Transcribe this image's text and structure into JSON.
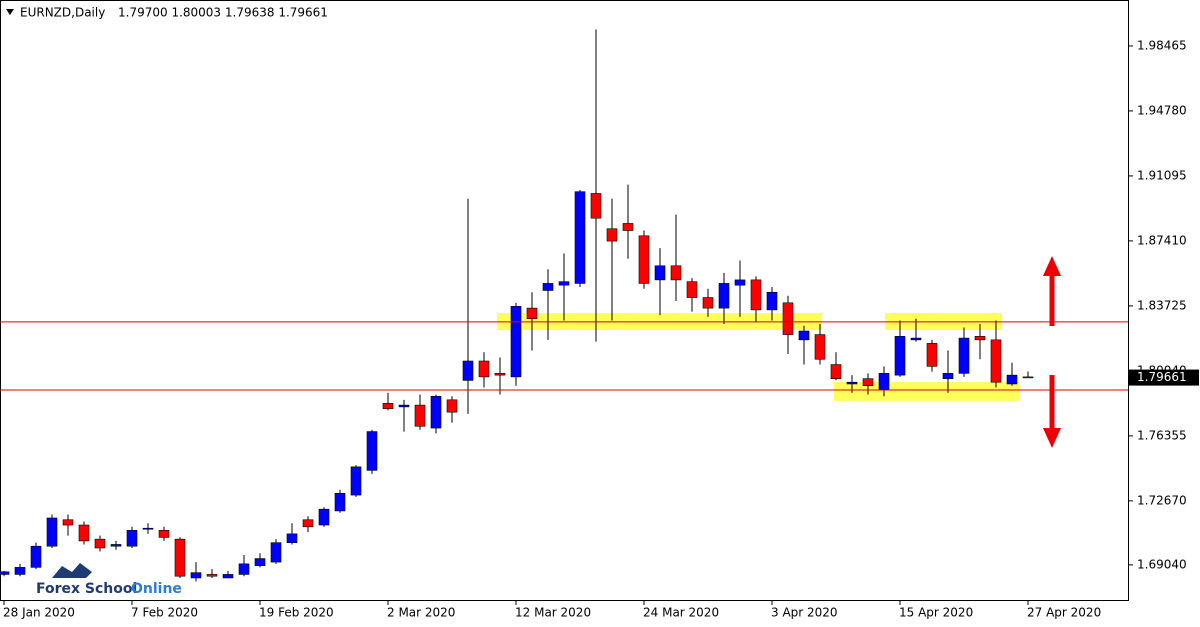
{
  "chart_data": {
    "type": "candlestick",
    "title": "EURNZD,Daily",
    "ohlc_text": "1.79700 1.80003 1.79638 1.79661",
    "price_label": "1.79661",
    "logo": {
      "part1": "Forex School",
      "part2": "Online"
    },
    "up_color": "#0000ff",
    "down_color": "#ff0000",
    "categories": [
      "28 Jan 2020",
      null,
      null,
      null,
      null,
      null,
      null,
      null,
      "7 Feb 2020",
      null,
      null,
      null,
      null,
      null,
      null,
      null,
      "19 Feb 2020",
      null,
      null,
      null,
      null,
      null,
      null,
      null,
      "2 Mar 2020",
      null,
      null,
      null,
      null,
      null,
      null,
      null,
      "12 Mar 2020",
      null,
      null,
      null,
      null,
      null,
      null,
      null,
      "24 Mar 2020",
      null,
      null,
      null,
      null,
      null,
      null,
      null,
      "3 Apr 2020",
      null,
      null,
      null,
      null,
      null,
      null,
      null,
      "15 Apr 2020",
      null,
      null,
      null,
      null,
      null,
      null,
      null,
      "27 Apr 2020"
    ],
    "open": [
      1.685,
      1.685,
      1.689,
      1.701,
      1.716,
      1.713,
      1.705,
      1.701,
      1.701,
      1.711,
      1.71,
      1.705,
      1.683,
      1.685,
      1.683,
      1.685,
      1.69,
      1.692,
      1.703,
      1.716,
      1.713,
      1.721,
      1.73,
      1.744,
      1.782,
      1.78,
      1.781,
      1.768,
      1.784,
      1.795,
      1.806,
      1.799,
      1.797,
      1.836,
      1.846,
      1.849,
      1.85,
      1.901,
      1.881,
      1.884,
      1.877,
      1.852,
      1.86,
      1.851,
      1.842,
      1.836,
      1.849,
      1.852,
      1.835,
      1.839,
      1.818,
      1.821,
      1.804,
      1.793,
      1.796,
      1.79,
      1.798,
      1.818,
      1.816,
      1.796,
      1.799,
      1.82,
      1.818,
      1.793,
      1.797
    ],
    "high": [
      1.687,
      1.691,
      1.703,
      1.719,
      1.719,
      1.715,
      1.707,
      1.704,
      1.712,
      1.714,
      1.712,
      1.706,
      1.692,
      1.688,
      1.687,
      1.696,
      1.697,
      1.705,
      1.714,
      1.718,
      1.723,
      1.733,
      1.747,
      1.767,
      1.788,
      1.784,
      1.787,
      1.787,
      1.786,
      1.898,
      1.811,
      1.808,
      1.839,
      1.845,
      1.858,
      1.867,
      1.903,
      1.994,
      1.898,
      1.906,
      1.88,
      1.87,
      1.889,
      1.853,
      1.847,
      1.856,
      1.863,
      1.854,
      1.848,
      1.843,
      1.826,
      1.827,
      1.811,
      1.798,
      1.799,
      1.803,
      1.829,
      1.83,
      1.818,
      1.812,
      1.825,
      1.827,
      1.829,
      1.805,
      1.80003
    ],
    "low": [
      1.684,
      1.684,
      1.688,
      1.7,
      1.707,
      1.702,
      1.698,
      1.699,
      1.7,
      1.708,
      1.704,
      1.683,
      1.681,
      1.683,
      1.683,
      1.684,
      1.689,
      1.691,
      1.702,
      1.709,
      1.712,
      1.72,
      1.729,
      1.742,
      1.778,
      1.766,
      1.767,
      1.765,
      1.771,
      1.776,
      1.791,
      1.787,
      1.792,
      1.812,
      1.818,
      1.829,
      1.848,
      1.817,
      1.829,
      1.864,
      1.847,
      1.832,
      1.84,
      1.834,
      1.831,
      1.827,
      1.831,
      1.828,
      1.829,
      1.81,
      1.804,
      1.804,
      1.795,
      1.788,
      1.787,
      1.786,
      1.797,
      1.817,
      1.8,
      1.788,
      1.797,
      1.807,
      1.791,
      1.792,
      1.79638
    ],
    "close": [
      1.6865,
      1.689,
      1.701,
      1.717,
      1.713,
      1.704,
      1.7,
      1.702,
      1.71,
      1.7112,
      1.706,
      1.684,
      1.686,
      1.684,
      1.685,
      1.691,
      1.694,
      1.703,
      1.708,
      1.712,
      1.722,
      1.731,
      1.746,
      1.766,
      1.779,
      1.781,
      1.769,
      1.786,
      1.777,
      1.806,
      1.797,
      1.798,
      1.837,
      1.83,
      1.85,
      1.851,
      1.902,
      1.887,
      1.874,
      1.88,
      1.85,
      1.86,
      1.852,
      1.842,
      1.836,
      1.85,
      1.852,
      1.835,
      1.845,
      1.821,
      1.823,
      1.807,
      1.796,
      1.794,
      1.792,
      1.799,
      1.82,
      1.819,
      1.803,
      1.799,
      1.819,
      1.818,
      1.794,
      1.798,
      1.79661
    ],
    "levels": [
      1.8282,
      1.7896
    ],
    "level_color": "#e00000",
    "zones": [
      {
        "low": 1.8236,
        "high": 1.8332
      },
      {
        "low": 1.8236,
        "high": 1.8332
      },
      {
        "low": 1.7834,
        "high": 1.7941
      }
    ],
    "zone_color": "#ffff33",
    "ylim": [
      1.6705,
      2.0107
    ],
    "yticks": [
      1.98465,
      {
        "value": 1.9478,
        "label": "1.94780"
      },
      1.91095,
      {
        "value": 1.8741,
        "label": "1.87410"
      },
      1.83725,
      {
        "value": 1.8004,
        "label": "1.80040"
      },
      1.76355,
      {
        "value": 1.7267,
        "label": "1.72670"
      },
      {
        "value": 1.6904,
        "label": "1.69040"
      }
    ],
    "grid": false
  }
}
